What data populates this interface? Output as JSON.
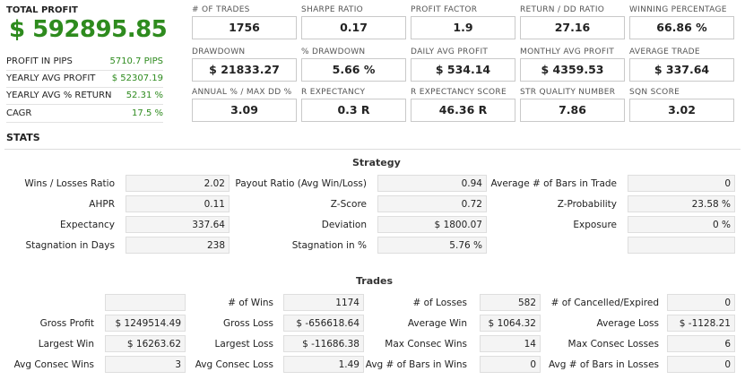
{
  "summary": {
    "total_label": "TOTAL PROFIT",
    "total_value": "$ 592895.85",
    "rows": [
      {
        "label": "PROFIT IN PIPS",
        "value": "5710.7 PIPS"
      },
      {
        "label": "YEARLY AVG PROFIT",
        "value": "$ 52307.19"
      },
      {
        "label": "YEARLY AVG % RETURN",
        "value": "52.31 %"
      },
      {
        "label": "CAGR",
        "value": "17.5 %"
      }
    ]
  },
  "metrics": [
    {
      "label": "# OF TRADES",
      "value": "1756"
    },
    {
      "label": "SHARPE RATIO",
      "value": "0.17"
    },
    {
      "label": "PROFIT FACTOR",
      "value": "1.9"
    },
    {
      "label": "RETURN / DD RATIO",
      "value": "27.16"
    },
    {
      "label": "WINNING PERCENTAGE",
      "value": "66.86 %"
    },
    {
      "label": "DRAWDOWN",
      "value": "$ 21833.27"
    },
    {
      "label": "% DRAWDOWN",
      "value": "5.66 %"
    },
    {
      "label": "DAILY AVG PROFIT",
      "value": "$ 534.14"
    },
    {
      "label": "MONTHLY AVG PROFIT",
      "value": "$ 4359.53"
    },
    {
      "label": "AVERAGE TRADE",
      "value": "$ 337.64"
    },
    {
      "label": "ANNUAL % / MAX DD %",
      "value": "3.09"
    },
    {
      "label": "R EXPECTANCY",
      "value": "0.3 R"
    },
    {
      "label": "R EXPECTANCY SCORE",
      "value": "46.36 R"
    },
    {
      "label": "STR QUALITY NUMBER",
      "value": "7.86"
    },
    {
      "label": "SQN SCORE",
      "value": "3.02"
    }
  ],
  "stats_title": "STATS",
  "strategy": {
    "title": "Strategy",
    "rows": [
      [
        {
          "label": "Wins / Losses Ratio",
          "value": "2.02"
        },
        {
          "label": "Payout Ratio (Avg Win/Loss)",
          "value": "0.94"
        },
        {
          "label": "Average # of Bars in Trade",
          "value": "0"
        }
      ],
      [
        {
          "label": "AHPR",
          "value": "0.11"
        },
        {
          "label": "Z-Score",
          "value": "0.72"
        },
        {
          "label": "Z-Probability",
          "value": "23.58 %"
        }
      ],
      [
        {
          "label": "Expectancy",
          "value": "337.64"
        },
        {
          "label": "Deviation",
          "value": "$ 1800.07"
        },
        {
          "label": "Exposure",
          "value": "0 %"
        }
      ],
      [
        {
          "label": "Stagnation in Days",
          "value": "238"
        },
        {
          "label": "Stagnation in %",
          "value": "5.76 %"
        },
        {
          "label": "",
          "value": ""
        }
      ]
    ]
  },
  "trades": {
    "title": "Trades",
    "rows": [
      [
        {
          "label": "",
          "value": ""
        },
        {
          "label": "# of Wins",
          "value": "1174"
        },
        {
          "label": "# of Losses",
          "value": "582"
        },
        {
          "label": "# of Cancelled/Expired",
          "value": "0"
        }
      ],
      [
        {
          "label": "Gross Profit",
          "value": "$ 1249514.49"
        },
        {
          "label": "Gross Loss",
          "value": "$ -656618.64"
        },
        {
          "label": "Average Win",
          "value": "$ 1064.32"
        },
        {
          "label": "Average Loss",
          "value": "$ -1128.21"
        }
      ],
      [
        {
          "label": "Largest Win",
          "value": "$ 16263.62"
        },
        {
          "label": "Largest Loss",
          "value": "$ -11686.38"
        },
        {
          "label": "Max Consec Wins",
          "value": "14"
        },
        {
          "label": "Max Consec Losses",
          "value": "6"
        }
      ],
      [
        {
          "label": "Avg Consec Wins",
          "value": "3"
        },
        {
          "label": "Avg Consec Loss",
          "value": "1.49"
        },
        {
          "label": "Avg # of Bars in Wins",
          "value": "0"
        },
        {
          "label": "Avg # of Bars in Losses",
          "value": "0"
        }
      ]
    ]
  }
}
